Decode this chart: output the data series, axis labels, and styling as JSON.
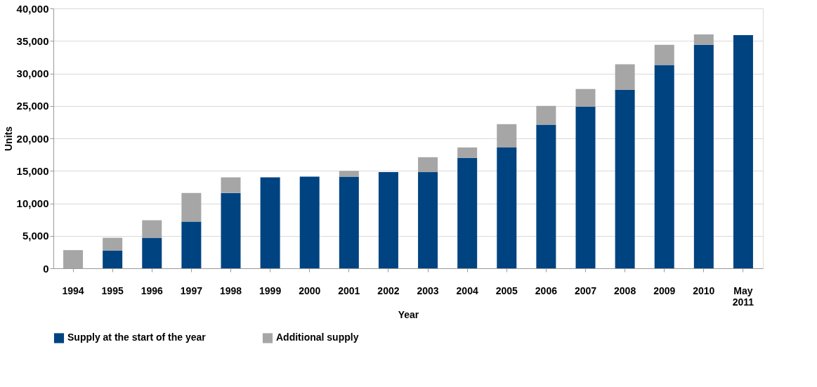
{
  "chart_data": {
    "type": "bar",
    "stacked": true,
    "xlabel": "Year",
    "ylabel": "Units",
    "categories": [
      "1994",
      "1995",
      "1996",
      "1997",
      "1998",
      "1999",
      "2000",
      "2001",
      "2002",
      "2003",
      "2004",
      "2005",
      "2006",
      "2007",
      "2008",
      "2009",
      "2010",
      "May 2011"
    ],
    "series": [
      {
        "name": "Supply at the start of the year",
        "color": "#004381",
        "values": [
          0,
          2700,
          4700,
          7200,
          11600,
          14000,
          14100,
          14100,
          14800,
          14800,
          17000,
          18600,
          22100,
          24900,
          27500,
          31300,
          34400,
          35900
        ]
      },
      {
        "name": "Additional supply",
        "color": "#a6a6a6",
        "values": [
          2800,
          2000,
          2700,
          4400,
          2400,
          0,
          0,
          900,
          0,
          2300,
          1600,
          3600,
          2900,
          2700,
          3900,
          3100,
          1600,
          0
        ]
      }
    ],
    "ylim": [
      0,
      40000
    ],
    "yticks": [
      0,
      {
        "value": 5000,
        "label": "5,000"
      },
      {
        "value": 10000,
        "label": "10,000"
      },
      {
        "value": 15000,
        "label": "15,000"
      },
      {
        "value": 20000,
        "label": "20,000"
      },
      {
        "value": 25000,
        "label": "25,000"
      },
      {
        "value": 30000,
        "label": "30,000"
      },
      {
        "value": 35000,
        "label": "35,000"
      },
      {
        "value": 40000,
        "label": "40,000"
      }
    ],
    "grid": "y",
    "legend": "bottom"
  }
}
